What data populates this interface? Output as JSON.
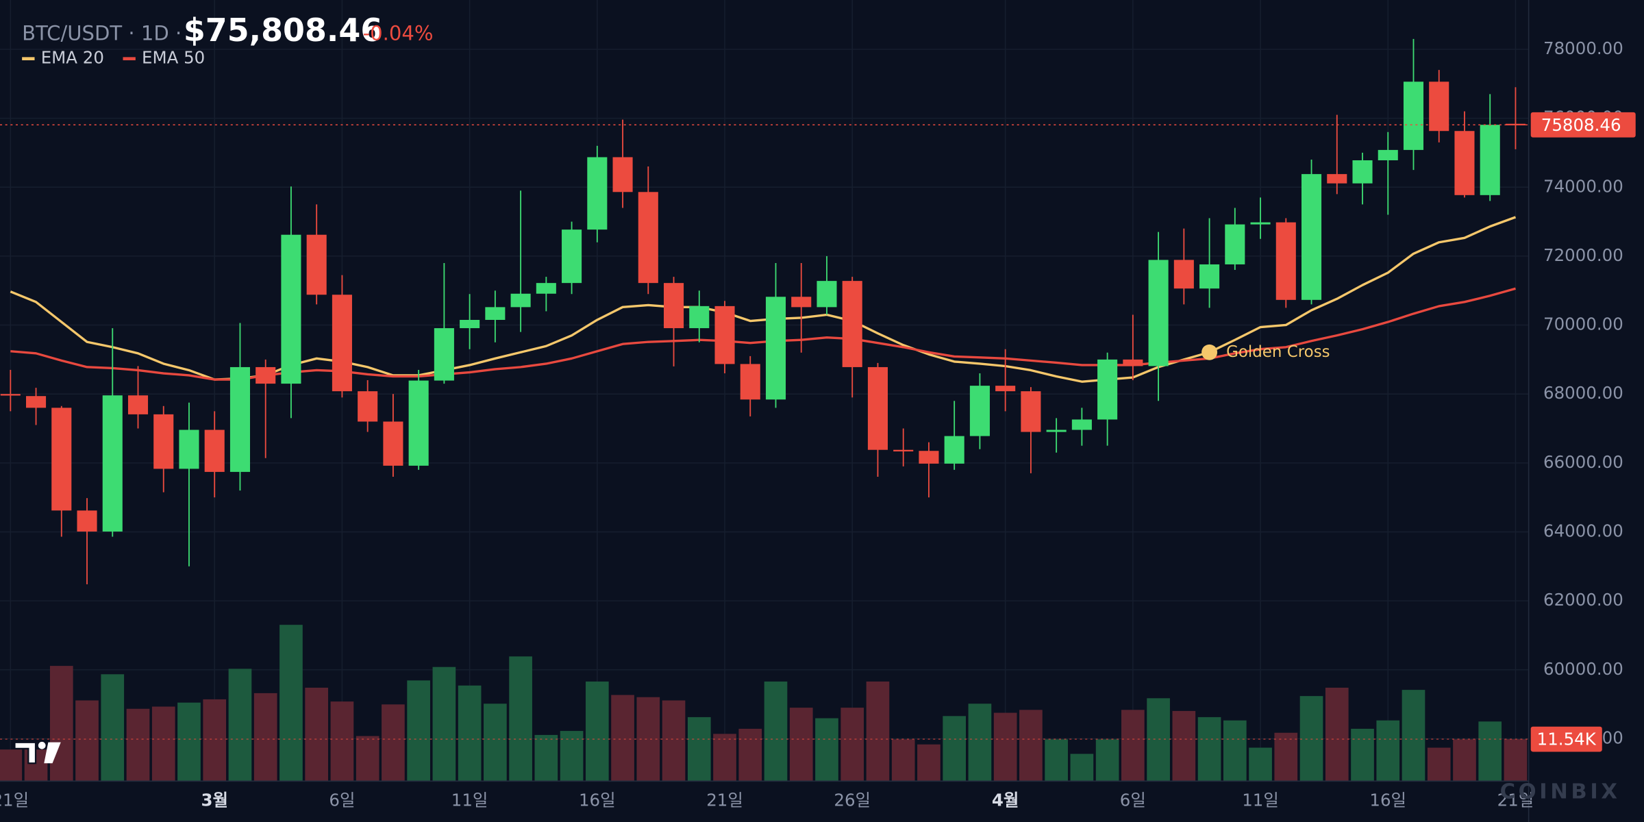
{
  "chart_data": {
    "type": "candlestick",
    "header": {
      "symbol": "BTC/USDT · 1D ·",
      "price": "$75,808.46",
      "change": "-0.04%"
    },
    "categories": [
      "21일",
      null,
      null,
      null,
      null,
      null,
      null,
      null,
      "3월",
      null,
      null,
      null,
      null,
      "6일",
      null,
      null,
      null,
      null,
      "11일",
      null,
      null,
      null,
      null,
      "16일",
      null,
      null,
      null,
      null,
      "21일",
      null,
      null,
      null,
      null,
      "26일",
      null,
      null,
      null,
      null,
      null,
      "4월",
      null,
      null,
      null,
      null,
      "6일",
      null,
      null,
      null,
      null,
      "11일",
      null,
      null,
      null,
      null,
      "16일",
      null,
      null,
      null,
      null,
      "21일"
    ],
    "x_bold_ticks": [
      8,
      39
    ],
    "open": [
      68000,
      67940,
      67600,
      64620,
      64010,
      67960,
      67410,
      65830,
      66960,
      65740,
      68780,
      68300,
      72620,
      70880,
      68080,
      67200,
      65920,
      68390,
      69910,
      70150,
      70520,
      70910,
      71220,
      72770,
      74870,
      73860,
      71220,
      69910,
      70550,
      68870,
      67840,
      70820,
      70520,
      71280,
      68780,
      66380,
      66350,
      65980,
      66780,
      68240,
      68080,
      66900,
      66960,
      67260,
      69000,
      68810,
      71890,
      71060,
      71760,
      72920,
      72980,
      70730,
      74380,
      74110,
      74780,
      75080,
      77060,
      75630,
      73770,
      75839
    ],
    "high": [
      68700,
      68180,
      67650,
      64980,
      69910,
      68810,
      67650,
      67750,
      67500,
      70060,
      69000,
      74020,
      73500,
      71450,
      68400,
      68000,
      68700,
      71800,
      70900,
      71000,
      73900,
      71400,
      73000,
      75200,
      75960,
      74600,
      71400,
      71000,
      70700,
      69100,
      71800,
      71800,
      72000,
      71400,
      68900,
      67000,
      66600,
      67800,
      68600,
      69300,
      68200,
      67300,
      67600,
      69200,
      70300,
      72700,
      72800,
      73100,
      73400,
      73700,
      73100,
      74800,
      76100,
      75000,
      75600,
      78300,
      77400,
      76200,
      76700,
      76900
    ],
    "low": [
      67500,
      67100,
      63860,
      62480,
      63860,
      67000,
      65150,
      63000,
      65000,
      65200,
      66140,
      67300,
      70600,
      67900,
      66900,
      65600,
      65800,
      68300,
      69300,
      69500,
      69800,
      70400,
      70900,
      72400,
      73400,
      70900,
      68800,
      69500,
      68600,
      67350,
      67600,
      69200,
      70300,
      67900,
      65600,
      65900,
      65000,
      65800,
      66400,
      67500,
      65700,
      66300,
      66500,
      66500,
      68400,
      67800,
      70600,
      70500,
      71600,
      72500,
      70500,
      70600,
      73800,
      73500,
      73200,
      74500,
      75300,
      73700,
      73600,
      75100
    ],
    "close": [
      67970,
      67600,
      64620,
      64010,
      67960,
      67410,
      65830,
      66960,
      65740,
      68780,
      68300,
      72620,
      70880,
      68080,
      67200,
      65920,
      68390,
      69910,
      70150,
      70520,
      70910,
      71220,
      72770,
      74870,
      73860,
      71220,
      69910,
      70550,
      68870,
      67840,
      70820,
      70520,
      71280,
      68780,
      66380,
      66350,
      65980,
      66780,
      68240,
      68080,
      66900,
      66960,
      67260,
      69000,
      68810,
      71890,
      71060,
      71760,
      72920,
      72980,
      70730,
      74380,
      74110,
      74780,
      75080,
      77060,
      75630,
      73770,
      75810,
      75808.46
    ],
    "up_color": "#3ddc72",
    "down_color": "#ec4b3f",
    "series": [
      {
        "name": "EMA 20",
        "color": "#f5c76b",
        "values": [
          70970,
          70670,
          70090,
          69510,
          69360,
          69180,
          68880,
          68690,
          68420,
          68450,
          68540,
          68840,
          69030,
          68940,
          68780,
          68540,
          68540,
          68690,
          68840,
          69030,
          69210,
          69390,
          69700,
          70150,
          70520,
          70580,
          70520,
          70520,
          70370,
          70120,
          70180,
          70210,
          70300,
          70120,
          69760,
          69420,
          69150,
          68940,
          68880,
          68810,
          68690,
          68510,
          68360,
          68420,
          68480,
          68780,
          69000,
          69210,
          69570,
          69940,
          70000,
          70430,
          70760,
          71160,
          71520,
          72070,
          72400,
          72530,
          72860,
          73130
        ]
      },
      {
        "name": "EMA 50",
        "color": "#e8493f",
        "values": [
          69240,
          69180,
          68970,
          68780,
          68750,
          68690,
          68600,
          68540,
          68420,
          68420,
          68540,
          68630,
          68690,
          68660,
          68570,
          68510,
          68510,
          68570,
          68630,
          68720,
          68780,
          68880,
          69030,
          69240,
          69450,
          69510,
          69540,
          69570,
          69540,
          69480,
          69540,
          69570,
          69640,
          69600,
          69480,
          69360,
          69210,
          69090,
          69060,
          69030,
          68970,
          68910,
          68840,
          68840,
          68840,
          68910,
          68970,
          69030,
          69180,
          69300,
          69360,
          69540,
          69700,
          69880,
          70090,
          70330,
          70550,
          70670,
          70850,
          71060
        ]
      }
    ],
    "annotation": {
      "text": "Golden Cross",
      "index": 47,
      "value": 69210,
      "color": "#f5c76b"
    },
    "ylim": [
      56770,
      79430
    ],
    "yticks": [
      {
        "value": 58000,
        "label": "58000.00"
      },
      {
        "value": 60000,
        "label": "60000.00"
      },
      {
        "value": 62000,
        "label": "62000.00"
      },
      {
        "value": 64000,
        "label": "64000.00"
      },
      {
        "value": 66000,
        "label": "66000.00"
      },
      {
        "value": 68000,
        "label": "68000.00"
      },
      {
        "value": 70000,
        "label": "70000.00"
      },
      {
        "value": 72000,
        "label": "72000.00"
      },
      {
        "value": 74000,
        "label": "74000.00"
      },
      {
        "value": 76000,
        "label": "76000.00"
      },
      {
        "value": 78000,
        "label": "78000.00"
      }
    ],
    "grid": true,
    "volume": {
      "values": [
        8.7,
        8.7,
        31.7,
        22.2,
        29.4,
        19.9,
        20.5,
        21.6,
        22.5,
        30.9,
        24.2,
        43.0,
        25.7,
        21.9,
        12.4,
        21.1,
        27.7,
        31.4,
        26.3,
        21.3,
        34.3,
        12.7,
        13.8,
        27.4,
        23.7,
        23.1,
        22.2,
        17.6,
        13.0,
        14.4,
        27.4,
        20.2,
        17.3,
        20.2,
        27.4,
        11.5,
        10.1,
        17.9,
        21.3,
        18.8,
        19.6,
        11.5,
        7.5,
        11.5,
        19.6,
        22.8,
        19.3,
        17.6,
        16.7,
        9.2,
        13.3,
        23.4,
        25.7,
        14.4,
        16.7,
        25.1,
        9.2,
        11.5,
        16.4,
        11.54
      ],
      "ylim": [
        0,
        60
      ],
      "last_label": "11.54K",
      "up_color": "#1d5a3e",
      "down_color": "#5a2531"
    },
    "watermark": "COINBIX"
  }
}
